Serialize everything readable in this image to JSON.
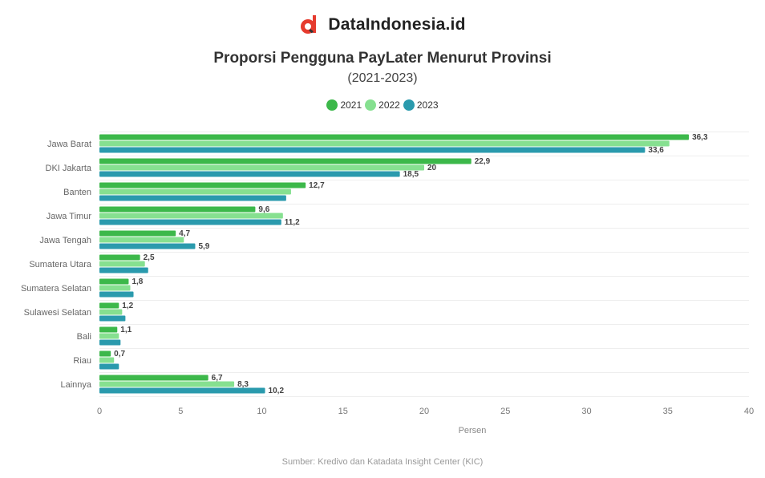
{
  "brand": {
    "name": "DataIndonesia.id",
    "logo_icon": "dataindonesia-logo-icon",
    "logo_color": "#e63b2e"
  },
  "chart_data": {
    "type": "bar",
    "orientation": "horizontal",
    "title": "Proporsi Pengguna PayLater Menurut Provinsi",
    "subtitle": "(2021-2023)",
    "xlabel": "Persen",
    "ylabel": "",
    "xlim": [
      0,
      40
    ],
    "xticks": [
      0,
      5,
      10,
      15,
      20,
      25,
      30,
      35,
      40
    ],
    "grid": true,
    "legend_position": "top-center",
    "categories": [
      "Jawa Barat",
      "DKI Jakarta",
      "Banten",
      "Jawa Timur",
      "Jawa Tengah",
      "Sumatera Utara",
      "Sumatera Selatan",
      "Sulawesi Selatan",
      "Bali",
      "Riau",
      "Lainnya"
    ],
    "series": [
      {
        "name": "2021",
        "color": "#3cb84a",
        "values": [
          36.3,
          22.9,
          12.7,
          9.6,
          4.7,
          2.5,
          1.8,
          1.2,
          1.1,
          0.7,
          6.7
        ]
      },
      {
        "name": "2022",
        "color": "#86e090",
        "values": [
          35.1,
          20,
          11.8,
          11.3,
          5.2,
          2.8,
          1.9,
          1.4,
          1.2,
          0.9,
          8.3
        ]
      },
      {
        "name": "2023",
        "color": "#2a9aad",
        "values": [
          33.6,
          18.5,
          11.5,
          11.2,
          5.9,
          3,
          2.1,
          1.6,
          1.3,
          1.2,
          10.2
        ]
      }
    ],
    "data_labels": [
      [
        "36,3",
        "",
        "33,6"
      ],
      [
        "22,9",
        "20",
        "18,5"
      ],
      [
        "12,7",
        "",
        ""
      ],
      [
        "9,6",
        "",
        "11,2"
      ],
      [
        "4,7",
        "",
        "5,9"
      ],
      [
        "2,5",
        "",
        ""
      ],
      [
        "1,8",
        "",
        ""
      ],
      [
        "1,2",
        "",
        ""
      ],
      [
        "1,1",
        "",
        ""
      ],
      [
        "0,7",
        "",
        ""
      ],
      [
        "6,7",
        "8,3",
        "10,2"
      ]
    ]
  },
  "source": "Sumber: Kredivo dan Katadata Insight Center (KIC)"
}
